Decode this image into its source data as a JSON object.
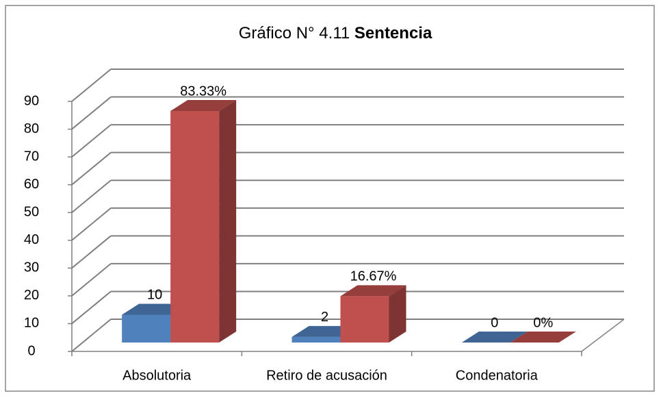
{
  "chart_data": {
    "type": "bar3d",
    "title_parts": [
      "Gráfico N° 4.11",
      "Sentencia"
    ],
    "categories": [
      "Absolutoria",
      "Retiro de acusación",
      "Condenatoria"
    ],
    "series": [
      {
        "color": "#4f81bd",
        "values": [
          10,
          2,
          0
        ]
      },
      {
        "color": "#c0504d",
        "values": [
          83.33,
          16.67,
          0
        ],
        "value_labels": [
          "83.33%",
          "16.67%",
          "0%"
        ]
      }
    ],
    "ylim": [
      0,
      90
    ],
    "yticks": [
      0,
      10,
      20,
      30,
      40,
      50,
      60,
      70,
      80,
      90
    ],
    "grid": true
  }
}
